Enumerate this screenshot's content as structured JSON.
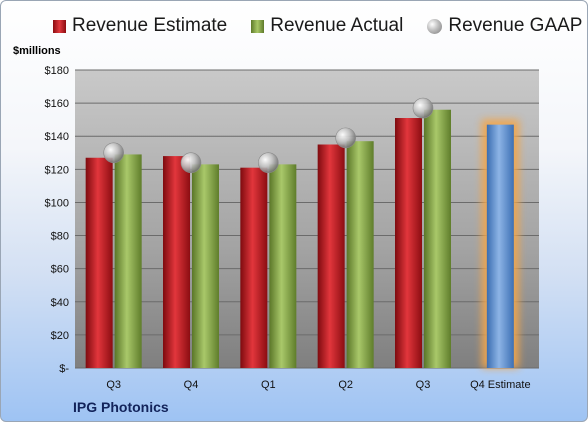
{
  "company": "IPG Photonics",
  "chart_data": {
    "type": "bar",
    "ylabel": "$millions",
    "ylim": [
      0,
      180
    ],
    "yticks": [
      "$-",
      "$20",
      "$40",
      "$60",
      "$80",
      "$100",
      "$120",
      "$140",
      "$160",
      "$180"
    ],
    "categories": [
      "Q3",
      "Q4",
      "Q1",
      "Q2",
      "Q3",
      "Q4 Estimate"
    ],
    "series": [
      {
        "name": "Revenue Estimate",
        "color": "#c0151b",
        "values": [
          127,
          128,
          121,
          135,
          151,
          null
        ]
      },
      {
        "name": "Revenue Actual",
        "color": "#8aa943",
        "values": [
          129,
          123,
          123,
          137,
          156,
          null
        ]
      },
      {
        "name": "Revenue GAAP",
        "color": "#b8b8b8",
        "marker": "circle",
        "values": [
          130,
          124,
          124,
          139,
          157,
          null
        ]
      }
    ],
    "estimate": {
      "category": "Q4 Estimate",
      "value": 147,
      "color": "#5b8ed0",
      "glow": "#f2a64c"
    },
    "grid": true,
    "legend_position": "top"
  }
}
